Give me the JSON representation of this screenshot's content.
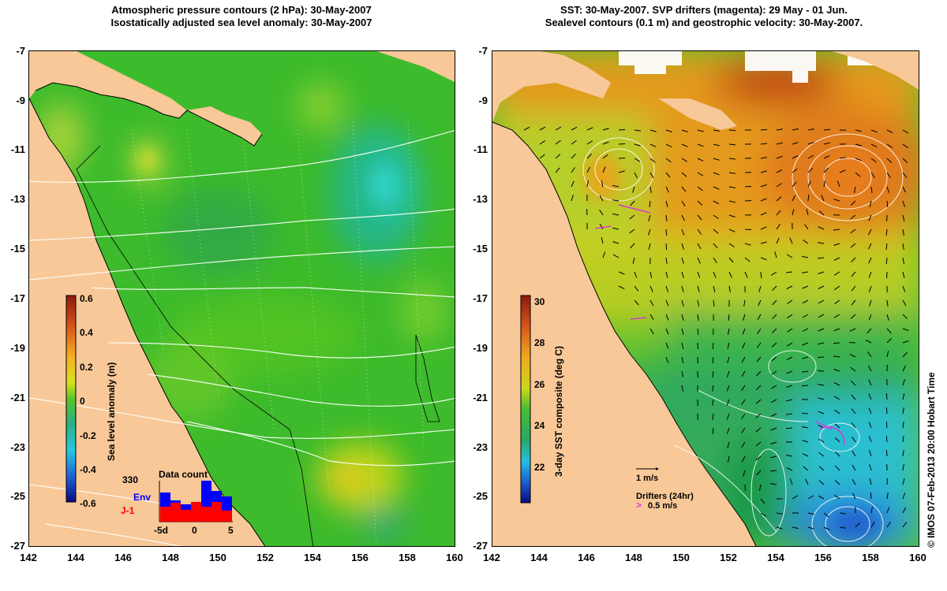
{
  "left_panel": {
    "title_line1": "Atmospheric pressure contours (2 hPa): 30-May-2007",
    "title_line2": "Isostatically adjusted sea level anomaly: 30-May-2007",
    "y_ticks": [
      "-7",
      "-9",
      "-11",
      "-13",
      "-15",
      "-17",
      "-19",
      "-21",
      "-23",
      "-25",
      "-27"
    ],
    "x_ticks": [
      "142",
      "144",
      "146",
      "148",
      "150",
      "152",
      "154",
      "156",
      "158",
      "160"
    ],
    "colorbar": {
      "label": "Sea level anomaly (m)",
      "ticks": [
        "0.6",
        "0.4",
        "0.2",
        "0",
        "-0.2",
        "-0.4",
        "-0.6"
      ],
      "range": [
        -0.6,
        0.6
      ]
    },
    "data_count": {
      "title": "Data count",
      "value": "330",
      "series_env": "Env",
      "series_j1": "J-1",
      "env_color": "#0000ff",
      "j1_color": "#ff0000",
      "x_ticks": [
        "-5d",
        "0",
        "5"
      ]
    }
  },
  "right_panel": {
    "title_line1": "SST: 30-May-2007. SVP drifters (magenta): 29 May - 01 Jun.",
    "title_line2": "Sealevel contours (0.1 m) and geostrophic velocity: 30-May-2007.",
    "y_ticks": [
      "-7",
      "-9",
      "-11",
      "-13",
      "-15",
      "-17",
      "-19",
      "-21",
      "-23",
      "-25",
      "-27"
    ],
    "x_ticks": [
      "142",
      "144",
      "146",
      "148",
      "150",
      "152",
      "154",
      "156",
      "158",
      "160"
    ],
    "colorbar": {
      "label": "3-day SST composite (deg C)",
      "ticks": [
        "30",
        "28",
        "26",
        "24",
        "22"
      ],
      "range": [
        20.5,
        30.5
      ]
    },
    "velocity_scale_label": "1 m/s",
    "drifters_label": "Drifters (24hr)",
    "drifter_speed_label": "0.5 m/s"
  },
  "credit": "© IMOS 07-Feb-2013 20:00 Hobart Time"
}
